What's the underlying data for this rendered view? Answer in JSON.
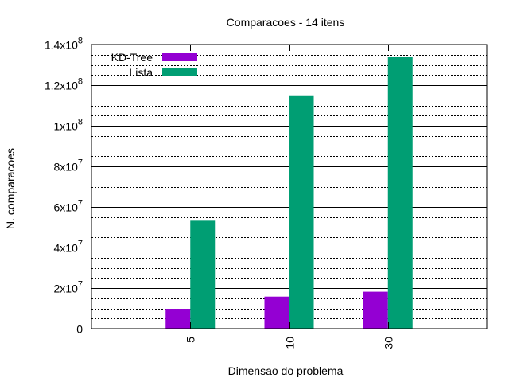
{
  "chart_data": {
    "type": "bar",
    "title": "Comparacoes - 14 itens",
    "xlabel": "Dimensao do problema",
    "ylabel": "N. comparacoes",
    "categories": [
      "5",
      "10",
      "30"
    ],
    "ylim": [
      0,
      140000000
    ],
    "yticks": [
      {
        "value": 0,
        "mant": "0",
        "exp": ""
      },
      {
        "value": 20000000,
        "mant": "2x10",
        "exp": "7"
      },
      {
        "value": 40000000,
        "mant": "4x10",
        "exp": "7"
      },
      {
        "value": 60000000,
        "mant": "6x10",
        "exp": "7"
      },
      {
        "value": 80000000,
        "mant": "8x10",
        "exp": "7"
      },
      {
        "value": 100000000,
        "mant": "1x10",
        "exp": "8"
      },
      {
        "value": 120000000,
        "mant": "1.2x10",
        "exp": "8"
      },
      {
        "value": 140000000,
        "mant": "1.4x10",
        "exp": "8"
      }
    ],
    "minor_grid_step": 5000000,
    "grid": true,
    "legend_position": "top-left",
    "series": [
      {
        "name": "KD-Tree",
        "color": "#9400d3",
        "values": [
          9800000,
          15800000,
          18200000
        ]
      },
      {
        "name": "Lista",
        "color": "#009e73",
        "values": [
          53200000,
          115000000,
          134000000
        ]
      }
    ]
  }
}
